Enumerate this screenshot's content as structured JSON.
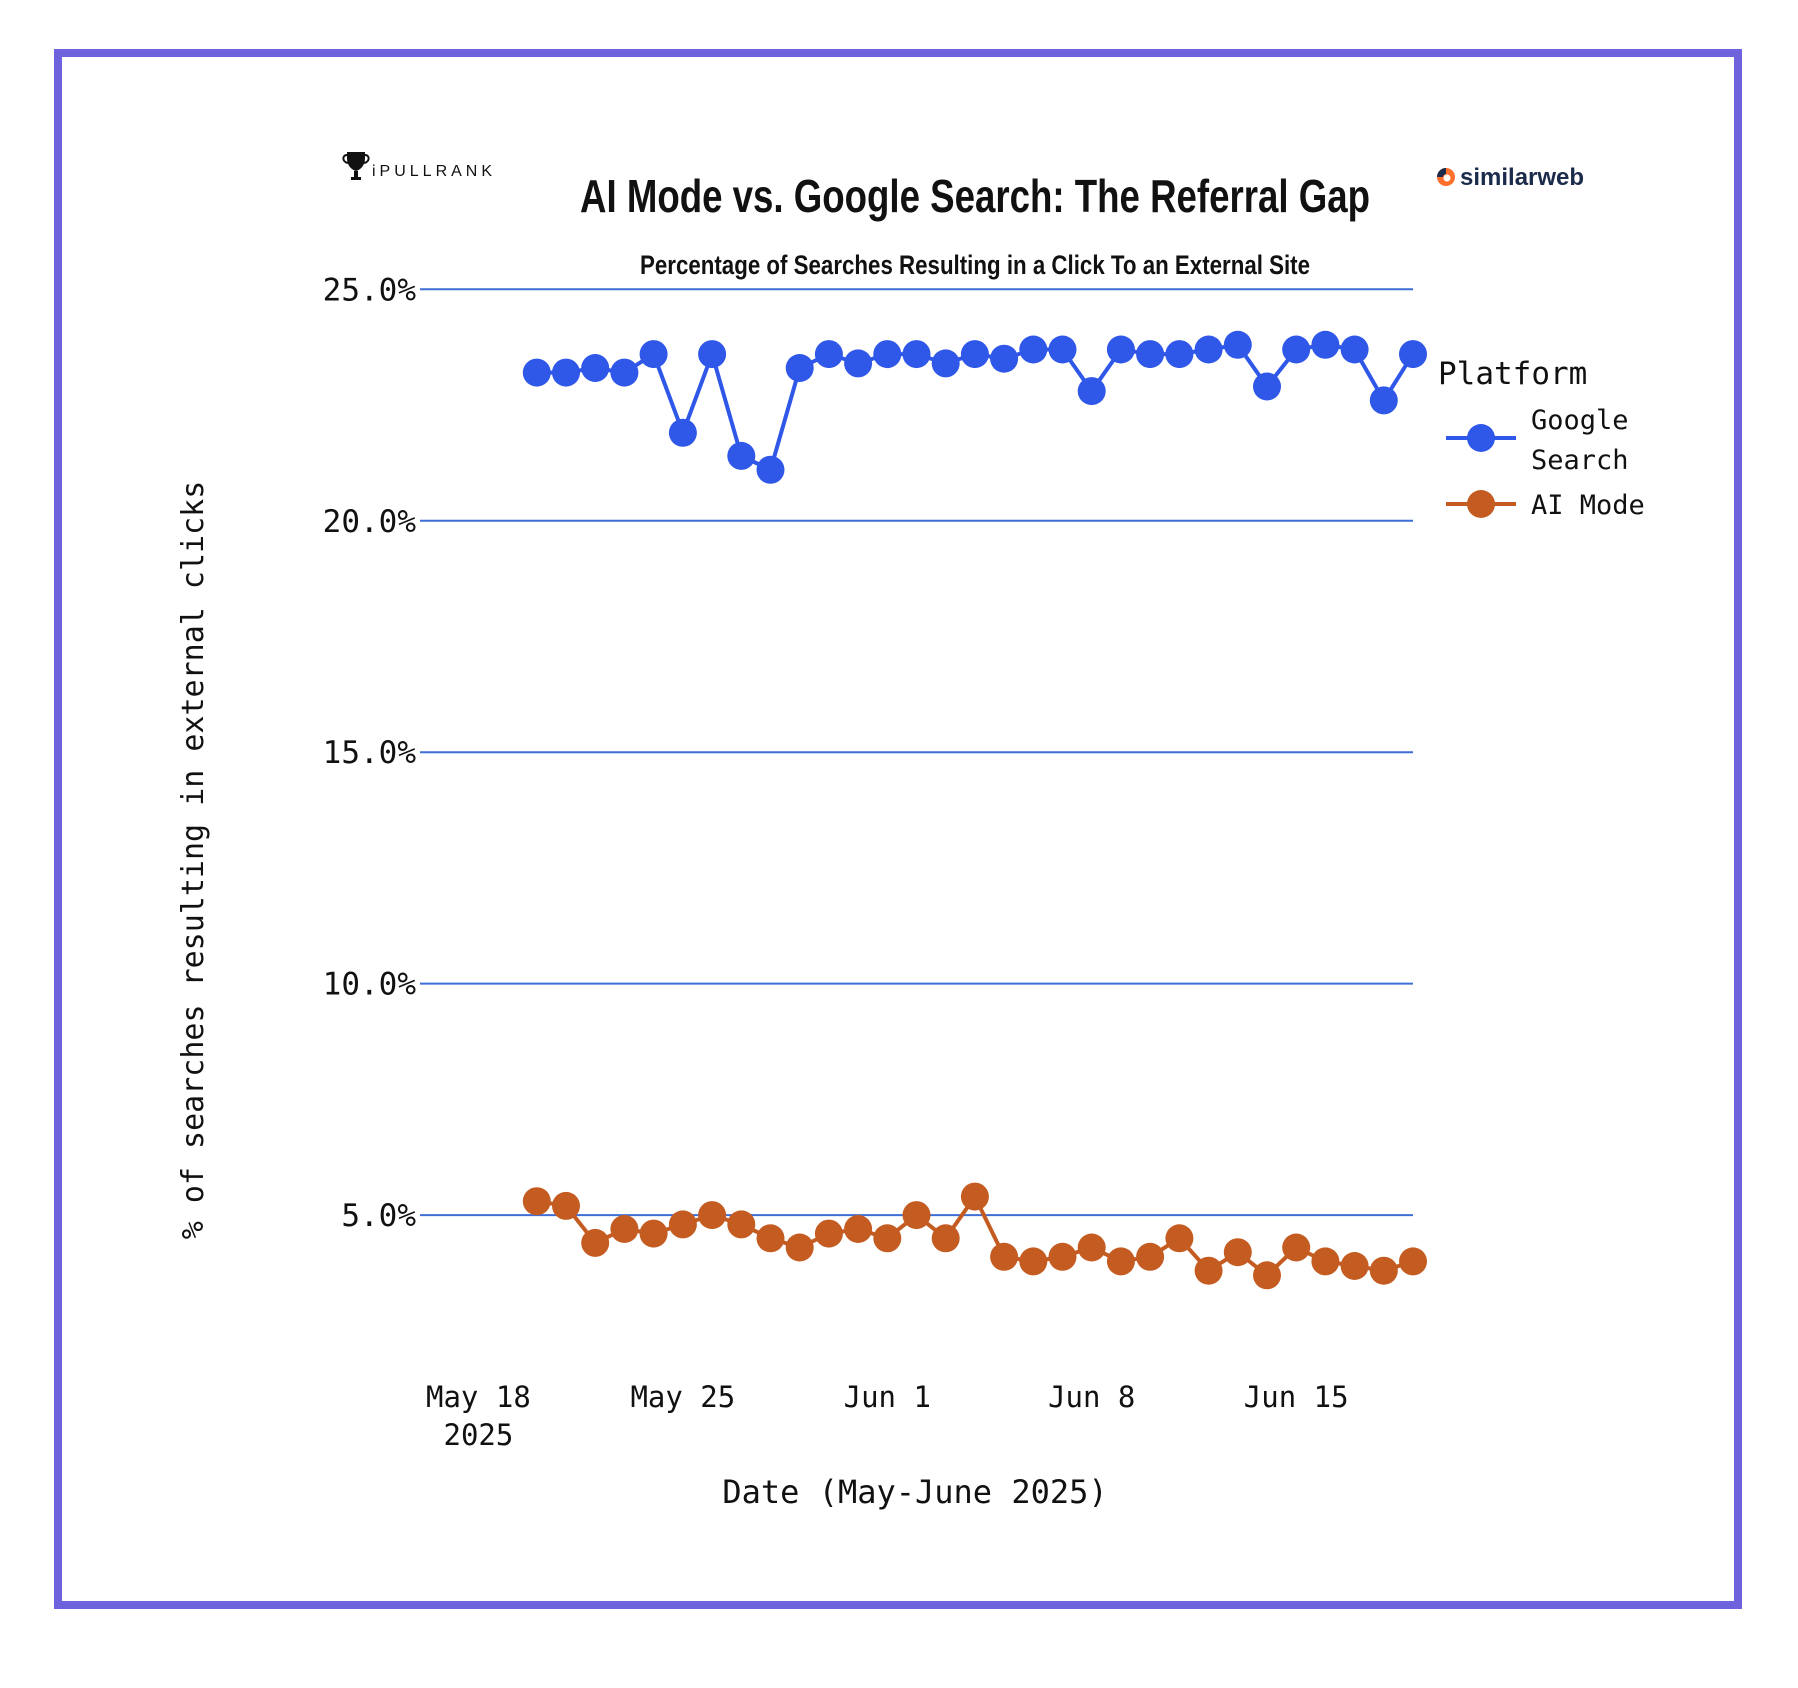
{
  "colors": {
    "frame": "#6e63dd",
    "grid": "#3e6fd6",
    "google": "#2f57e8",
    "ai_mode": "#c45c22"
  },
  "logos": {
    "left_text": "iPULLRANK",
    "left_icon": "trophy-icon",
    "right_text": "similarweb",
    "right_icon": "similarweb-icon"
  },
  "chart_data": {
    "type": "line",
    "title": "AI Mode vs. Google Search: The Referral Gap",
    "subtitle": "Percentage of Searches Resulting in a Click To an External Site",
    "xlabel": "Date (May-June 2025)",
    "ylabel": "% of searches resulting in external clicks",
    "x_start": "2025-05-20",
    "x_step_days": 1,
    "x_range_day_offsets": [
      -4.0,
      30.0
    ],
    "x_ticks": [
      {
        "day_offset": -2,
        "label": "May 18",
        "sublabel": "2025"
      },
      {
        "day_offset": 5,
        "label": "May 25",
        "sublabel": ""
      },
      {
        "day_offset": 12,
        "label": "Jun 1",
        "sublabel": ""
      },
      {
        "day_offset": 19,
        "label": "Jun 8",
        "sublabel": ""
      },
      {
        "day_offset": 26,
        "label": "Jun 15",
        "sublabel": ""
      }
    ],
    "ylim": [
      2.0,
      26.0
    ],
    "y_ticks": [
      {
        "value": 5,
        "label": "5.0%"
      },
      {
        "value": 10,
        "label": "10.0%"
      },
      {
        "value": 15,
        "label": "15.0%"
      },
      {
        "value": 20,
        "label": "20.0%"
      },
      {
        "value": 25,
        "label": "25.0%"
      }
    ],
    "grid": true,
    "legend": {
      "title": "Platform",
      "placement": "right",
      "entries": [
        {
          "key": "google",
          "lines": [
            "Google",
            "Search"
          ]
        },
        {
          "key": "ai_mode",
          "lines": [
            "AI Mode"
          ]
        }
      ]
    },
    "series": [
      {
        "name": "Google Search",
        "key": "google",
        "values": [
          23.2,
          23.2,
          23.3,
          23.2,
          23.6,
          21.9,
          23.6,
          21.4,
          21.1,
          23.3,
          23.6,
          23.4,
          23.6,
          23.6,
          23.4,
          23.6,
          23.5,
          23.7,
          23.7,
          22.8,
          23.7,
          23.6,
          23.6,
          23.7,
          23.8,
          22.9,
          23.7,
          23.8,
          23.7,
          22.6,
          23.6
        ]
      },
      {
        "name": "AI Mode",
        "key": "ai_mode",
        "values": [
          5.3,
          5.2,
          4.4,
          4.7,
          4.6,
          4.8,
          5.0,
          4.8,
          4.5,
          4.3,
          4.6,
          4.7,
          4.5,
          5.0,
          4.5,
          5.4,
          4.1,
          4.0,
          4.1,
          4.3,
          4.0,
          4.1,
          4.5,
          3.8,
          4.2,
          3.7,
          4.3,
          4.0,
          3.9,
          3.8,
          4.0
        ]
      }
    ]
  }
}
